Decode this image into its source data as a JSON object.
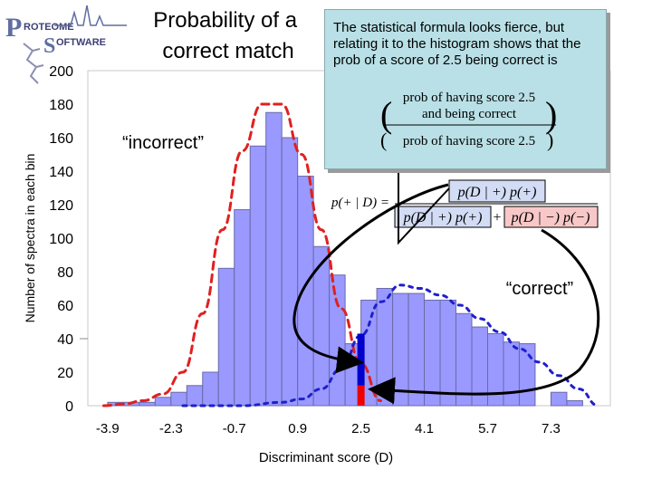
{
  "logo": {
    "line1": "ROTEOME",
    "line2": "OFTWARE",
    "initial1": "P",
    "initial2": "S"
  },
  "slide_title": "Probability of a correct match",
  "callout": {
    "text": "The statistical formula looks fierce, but relating it to the histogram shows that the prob of a score of 2.5 being correct is",
    "fraction_numerator_1": "prob of having score 2.5",
    "fraction_numerator_2": "and being correct",
    "fraction_denominator": "prob of having score 2.5"
  },
  "formula": {
    "lhs": "p(+ | D) =",
    "numerator": "p(D | +) p(+)",
    "denominator_left": "p(D | +) p(+)",
    "plus": "+",
    "denominator_right": "p(D | −) p(−)"
  },
  "labels": {
    "incorrect": "“incorrect”",
    "correct": "“correct”"
  },
  "colors": {
    "bar_fill": "#9999ff",
    "bar_stroke": "#6a6aa8",
    "incorrect_curve": "#e02020",
    "correct_curve": "#1f1fcc",
    "highlight_blue": "#0000cc",
    "highlight_red": "#ee0000",
    "callout_bg": "#b9e0e6",
    "formula_pink": "#f8c8c8",
    "formula_blue": "#d2dcf4"
  },
  "chart_data": {
    "type": "bar",
    "title": "Probability of a correct match",
    "xlabel": "Discriminant score (D)",
    "ylabel": "Number of spectra in each bin",
    "ylim": [
      0,
      200
    ],
    "yticks": [
      0,
      20,
      40,
      60,
      80,
      100,
      120,
      140,
      160,
      180,
      200
    ],
    "xticks": [
      -3.9,
      -2.3,
      -0.7,
      0.9,
      2.5,
      4.1,
      5.7,
      7.3
    ],
    "xlim": [
      -4.4,
      8.8
    ],
    "bin_width": 0.4,
    "bins_x_start": [
      -3.9,
      -3.5,
      -3.1,
      -2.7,
      -2.3,
      -1.9,
      -1.5,
      -1.1,
      -0.7,
      -0.3,
      0.1,
      0.5,
      0.9,
      1.3,
      1.7,
      2.1,
      2.5,
      2.9,
      3.3,
      3.7,
      4.1,
      4.5,
      4.9,
      5.3,
      5.7,
      6.1,
      6.5,
      7.3,
      7.7
    ],
    "values": [
      2,
      2,
      2,
      5,
      8,
      12,
      20,
      82,
      117,
      155,
      175,
      160,
      137,
      95,
      78,
      37,
      63,
      70,
      67,
      67,
      63,
      63,
      55,
      47,
      43,
      38,
      37,
      8,
      3
    ],
    "curves": [
      {
        "name": "incorrect",
        "style": "dashed",
        "x": [
          -4.0,
          -3.5,
          -3.0,
          -2.5,
          -2.0,
          -1.5,
          -1.0,
          -0.5,
          0.0,
          0.5,
          1.0,
          1.5,
          2.0,
          2.5,
          3.0
        ],
        "y": [
          0,
          1,
          3,
          7,
          20,
          55,
          105,
          152,
          180,
          180,
          150,
          105,
          58,
          25,
          3
        ]
      },
      {
        "name": "correct",
        "style": "dotted",
        "x": [
          -2.0,
          -0.5,
          0.5,
          1.0,
          1.5,
          2.0,
          2.5,
          3.0,
          3.5,
          4.0,
          4.5,
          5.0,
          5.5,
          6.0,
          6.5,
          7.0,
          7.5,
          8.0,
          8.5
        ],
        "y": [
          0,
          0,
          2,
          4,
          10,
          22,
          42,
          62,
          72,
          70,
          66,
          60,
          52,
          44,
          34,
          26,
          18,
          10,
          0
        ]
      }
    ],
    "highlight": {
      "x": 2.5,
      "correct_value": 43,
      "incorrect_value": 12
    }
  }
}
